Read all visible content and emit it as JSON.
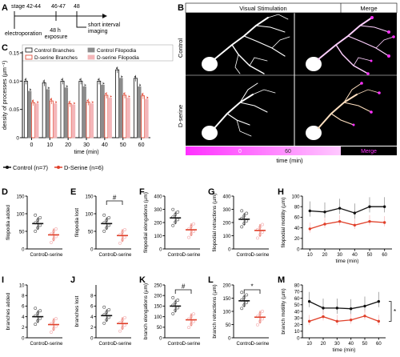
{
  "panel_letters": [
    "A",
    "B",
    "C",
    "D",
    "E",
    "F",
    "G",
    "H",
    "I",
    "J",
    "K",
    "L",
    "M"
  ],
  "timeline": {
    "stage_start": "stage 42-44",
    "stage_mid": "46-47",
    "stage_end": "48",
    "event_electroporation": "electroporation",
    "event_exposure": "48 h\nexposure",
    "event_imaging": "short interval\nimaging"
  },
  "microscopy": {
    "header_left": "Visual Stimulation",
    "header_right": "Merge",
    "row_top": "Control",
    "row_bottom": "D-serine",
    "colorbar_start": "0",
    "colorbar_mid": "60",
    "colorbar_end": "Merge",
    "time_label": "time (min)"
  },
  "group_legend": {
    "control": "Control (n=7)",
    "dserine": "D-Serine (n=6)"
  },
  "colors": {
    "control": "#111111",
    "dserine": "#e0402a",
    "dserine_light": "#f4b6b9",
    "gray_bar": "#8c8c8c",
    "magenta": "#ff30ff"
  },
  "chart_data": [
    {
      "panel": "C",
      "type": "bar",
      "ylabel": "density of processes (µm⁻¹)",
      "xlabel": "time (min)",
      "ylim": [
        0,
        0.15
      ],
      "yticks": [
        "0",
        "0.05",
        "0.10",
        "0.15"
      ],
      "categories": [
        "0",
        "10",
        "20",
        "30",
        "40",
        "50",
        "60"
      ],
      "legend": [
        "Control Branches",
        "Control Filopodia",
        "D-serine Branches",
        "D-serine Filopodia"
      ],
      "series": [
        {
          "name": "Control Branches",
          "values": [
            0.1,
            0.097,
            0.1,
            0.1,
            0.1,
            0.12,
            0.105
          ]
        },
        {
          "name": "Control Filopodia",
          "values": [
            0.082,
            0.085,
            0.088,
            0.09,
            0.093,
            0.105,
            0.09
          ]
        },
        {
          "name": "D-serine Branches",
          "values": [
            0.062,
            0.065,
            0.06,
            0.063,
            0.075,
            0.075,
            0.074
          ]
        },
        {
          "name": "D-serine Filopodia",
          "values": [
            0.06,
            0.06,
            0.058,
            0.06,
            0.07,
            0.07,
            0.068
          ]
        }
      ]
    },
    {
      "panel": "D",
      "type": "scatter",
      "ylabel": "filopodia added",
      "categories": [
        "Control",
        "D-serine"
      ],
      "ylim": [
        0,
        150
      ],
      "yticks": [
        "0",
        "50",
        "100",
        "150"
      ],
      "means": [
        72,
        40
      ]
    },
    {
      "panel": "E",
      "type": "scatter",
      "ylabel": "filopodia lost",
      "categories": [
        "Control",
        "D-serine"
      ],
      "ylim": [
        0,
        150
      ],
      "yticks": [
        "0",
        "50",
        "100",
        "150"
      ],
      "means": [
        72,
        38
      ],
      "significance": "#"
    },
    {
      "panel": "F",
      "type": "scatter",
      "ylabel": "filopodial elongations (µm)",
      "categories": [
        "Control",
        "D-serine"
      ],
      "ylim": [
        0,
        400
      ],
      "yticks": [
        "0",
        "100",
        "200",
        "300",
        "400"
      ],
      "means": [
        235,
        145
      ]
    },
    {
      "panel": "G",
      "type": "scatter",
      "ylabel": "filopodial retractions (µm)",
      "categories": [
        "Control",
        "D-serine"
      ],
      "ylim": [
        0,
        400
      ],
      "yticks": [
        "0",
        "100",
        "200",
        "300",
        "400"
      ],
      "means": [
        225,
        140
      ]
    },
    {
      "panel": "H",
      "type": "line",
      "ylabel": "filopodial motility (µm)",
      "xlabel": "time (min)",
      "x": [
        10,
        20,
        30,
        40,
        50,
        60
      ],
      "ylim": [
        0,
        100
      ],
      "yticks": [
        "0",
        "20",
        "40",
        "60",
        "80",
        "100"
      ],
      "series": [
        {
          "name": "Control",
          "values": [
            72,
            70,
            77,
            68,
            80,
            80
          ]
        },
        {
          "name": "D-serine",
          "values": [
            38,
            47,
            52,
            45,
            52,
            50
          ]
        }
      ]
    },
    {
      "panel": "I",
      "type": "scatter",
      "ylabel": "branches added",
      "categories": [
        "Control",
        "D-serine"
      ],
      "ylim": [
        0,
        10
      ],
      "yticks": [
        "0",
        "2",
        "4",
        "6",
        "8",
        "10"
      ],
      "means": [
        4,
        2.5
      ]
    },
    {
      "panel": "J",
      "type": "scatter",
      "ylabel": "branches lost",
      "categories": [
        "Control",
        "D-serine"
      ],
      "ylim": [
        0,
        10
      ],
      "yticks": [
        "0",
        "2",
        "4",
        "6",
        "8"
      ],
      "means": [
        4.2,
        2.7
      ]
    },
    {
      "panel": "K",
      "type": "scatter",
      "ylabel": "branch elongations (µm)",
      "categories": [
        "Control",
        "D-serine"
      ],
      "ylim": [
        0,
        250
      ],
      "yticks": [
        "0",
        "50",
        "100",
        "150",
        "200",
        "250"
      ],
      "means": [
        150,
        85
      ],
      "significance": "#"
    },
    {
      "panel": "L",
      "type": "scatter",
      "ylabel": "branch retractions (µm)",
      "categories": [
        "Control",
        "D-serine"
      ],
      "ylim": [
        0,
        200
      ],
      "yticks": [
        "0",
        "50",
        "100",
        "150",
        "200"
      ],
      "means": [
        140,
        78
      ],
      "significance": "*"
    },
    {
      "panel": "M",
      "type": "line",
      "ylabel": "branch motility (µm)",
      "xlabel": "time (min)",
      "x": [
        10,
        20,
        30,
        40,
        50,
        60
      ],
      "ylim": [
        0,
        80
      ],
      "yticks": [
        "0",
        "10",
        "20",
        "30",
        "40",
        "50",
        "60",
        "70",
        "80"
      ],
      "series": [
        {
          "name": "Control",
          "values": [
            55,
            45,
            45,
            44,
            48,
            55
          ]
        },
        {
          "name": "D-serine",
          "values": [
            25,
            32,
            25,
            27,
            33,
            25
          ]
        }
      ],
      "significance": "*"
    }
  ]
}
